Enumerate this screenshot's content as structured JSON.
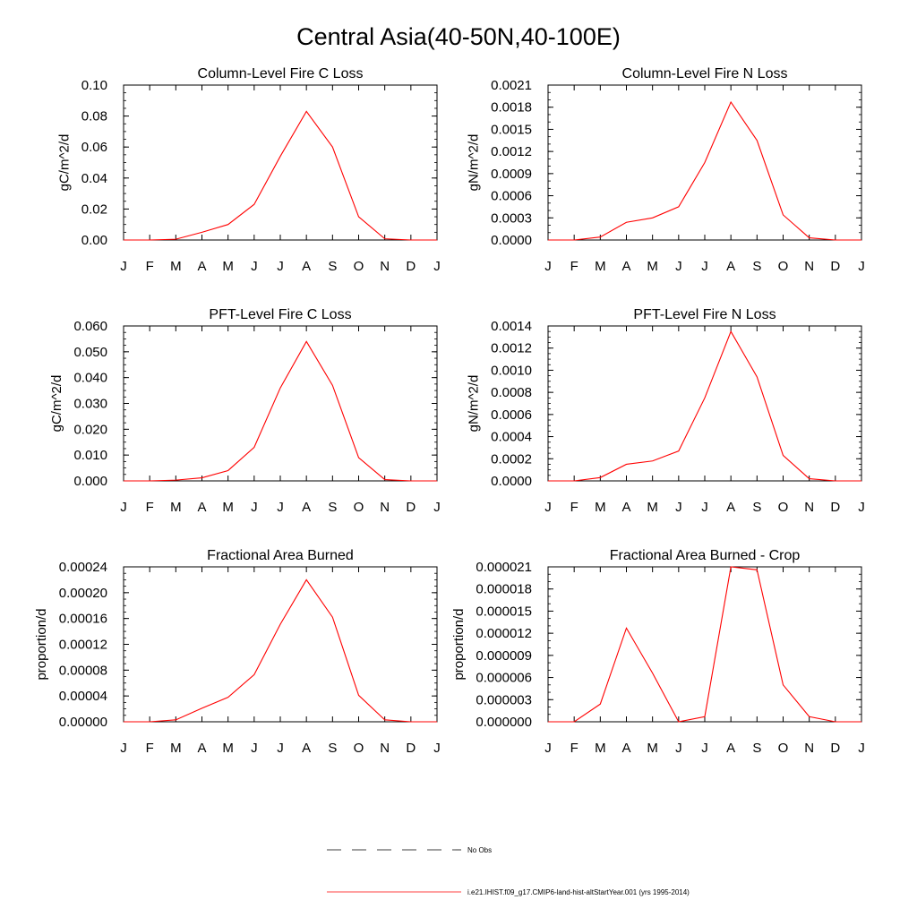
{
  "figure": {
    "title": "Central Asia(40-50N,40-100E)",
    "line_color": "#ff0000"
  },
  "chart_data": [
    {
      "type": "line",
      "title": "Column-Level Fire C Loss",
      "ylabel": "gC/m^2/d",
      "xlabel": "",
      "categories": [
        "J",
        "F",
        "M",
        "A",
        "M",
        "J",
        "J",
        "A",
        "S",
        "O",
        "N",
        "D",
        "J"
      ],
      "ylim": [
        0,
        0.1
      ],
      "yticks": [
        "0.00",
        "0.02",
        "0.04",
        "0.06",
        "0.08",
        "0.10"
      ],
      "yminor_step": 0.005,
      "series": [
        {
          "values": [
            0.0,
            0.0,
            0.0005,
            0.005,
            0.01,
            0.023,
            0.054,
            0.083,
            0.06,
            0.015,
            0.0008,
            0.0,
            0.0
          ]
        }
      ]
    },
    {
      "type": "line",
      "title": "Column-Level Fire N Loss",
      "ylabel": "gN/m^2/d",
      "xlabel": "",
      "categories": [
        "J",
        "F",
        "M",
        "A",
        "M",
        "J",
        "J",
        "A",
        "S",
        "O",
        "N",
        "D",
        "J"
      ],
      "ylim": [
        0,
        0.0021
      ],
      "yticks": [
        "0.0000",
        "0.0003",
        "0.0006",
        "0.0009",
        "0.0012",
        "0.0015",
        "0.0018",
        "0.0021"
      ],
      "yminor_step": 0.0001,
      "series": [
        {
          "values": [
            0.0,
            0.0,
            4e-05,
            0.00024,
            0.0003,
            0.00045,
            0.00105,
            0.00187,
            0.00135,
            0.00034,
            3e-05,
            0.0,
            0.0
          ]
        }
      ]
    },
    {
      "type": "line",
      "title": "PFT-Level Fire C Loss",
      "ylabel": "gC/m^2/d",
      "xlabel": "",
      "categories": [
        "J",
        "F",
        "M",
        "A",
        "M",
        "J",
        "J",
        "A",
        "S",
        "O",
        "N",
        "D",
        "J"
      ],
      "ylim": [
        0,
        0.06
      ],
      "yticks": [
        "0.000",
        "0.010",
        "0.020",
        "0.030",
        "0.040",
        "0.050",
        "0.060"
      ],
      "yminor_step": 0.0025,
      "series": [
        {
          "values": [
            0.0,
            0.0,
            0.0003,
            0.0012,
            0.004,
            0.013,
            0.036,
            0.054,
            0.037,
            0.009,
            0.0005,
            0.0,
            0.0
          ]
        }
      ]
    },
    {
      "type": "line",
      "title": "PFT-Level Fire N Loss",
      "ylabel": "gN/m^2/d",
      "xlabel": "",
      "categories": [
        "J",
        "F",
        "M",
        "A",
        "M",
        "J",
        "J",
        "A",
        "S",
        "O",
        "N",
        "D",
        "J"
      ],
      "ylim": [
        0,
        0.0014
      ],
      "yticks": [
        "0.0000",
        "0.0002",
        "0.0004",
        "0.0006",
        "0.0008",
        "0.0010",
        "0.0012",
        "0.0014"
      ],
      "yminor_step": 5e-05,
      "series": [
        {
          "values": [
            0.0,
            0.0,
            3e-05,
            0.00015,
            0.00018,
            0.00027,
            0.00075,
            0.00135,
            0.00094,
            0.00023,
            2e-05,
            0.0,
            0.0
          ]
        }
      ]
    },
    {
      "type": "line",
      "title": "Fractional Area Burned",
      "ylabel": "proportion/d",
      "xlabel": "",
      "categories": [
        "J",
        "F",
        "M",
        "A",
        "M",
        "J",
        "J",
        "A",
        "S",
        "O",
        "N",
        "D",
        "J"
      ],
      "ylim": [
        0,
        0.00024
      ],
      "yticks": [
        "0.00000",
        "0.00004",
        "0.00008",
        "0.00012",
        "0.00016",
        "0.00020",
        "0.00024"
      ],
      "yminor_step": 1e-05,
      "series": [
        {
          "values": [
            0.0,
            0.0,
            3e-06,
            2.1e-05,
            3.8e-05,
            7.3e-05,
            0.000151,
            0.00022,
            0.000162,
            4.1e-05,
            3e-06,
            0.0,
            0.0
          ]
        }
      ]
    },
    {
      "type": "line",
      "title": "Fractional Area Burned - Crop",
      "ylabel": "proportion/d",
      "xlabel": "",
      "categories": [
        "J",
        "F",
        "M",
        "A",
        "M",
        "J",
        "J",
        "A",
        "S",
        "O",
        "N",
        "D",
        "J"
      ],
      "ylim": [
        0,
        2.1e-05
      ],
      "yticks": [
        "0.000000",
        "0.000003",
        "0.000006",
        "0.000009",
        "0.000012",
        "0.000015",
        "0.000018",
        "0.000021"
      ],
      "yminor_step": 1e-06,
      "series": [
        {
          "values": [
            0.0,
            0.0,
            2.4e-06,
            1.27e-05,
            6.6e-06,
            0.0,
            7e-07,
            2.1e-05,
            2.06e-05,
            5e-06,
            7e-07,
            0.0,
            0.0
          ]
        }
      ]
    }
  ],
  "legend": {
    "entries": [
      {
        "label": "No Obs",
        "style": "dashed",
        "color": "#000000"
      },
      {
        "label": "i.e21.IHIST.f09_g17.CMIP6-land-hist-altStartYear.001 (yrs 1995-2014)",
        "style": "solid",
        "color": "#ff0000"
      }
    ]
  }
}
